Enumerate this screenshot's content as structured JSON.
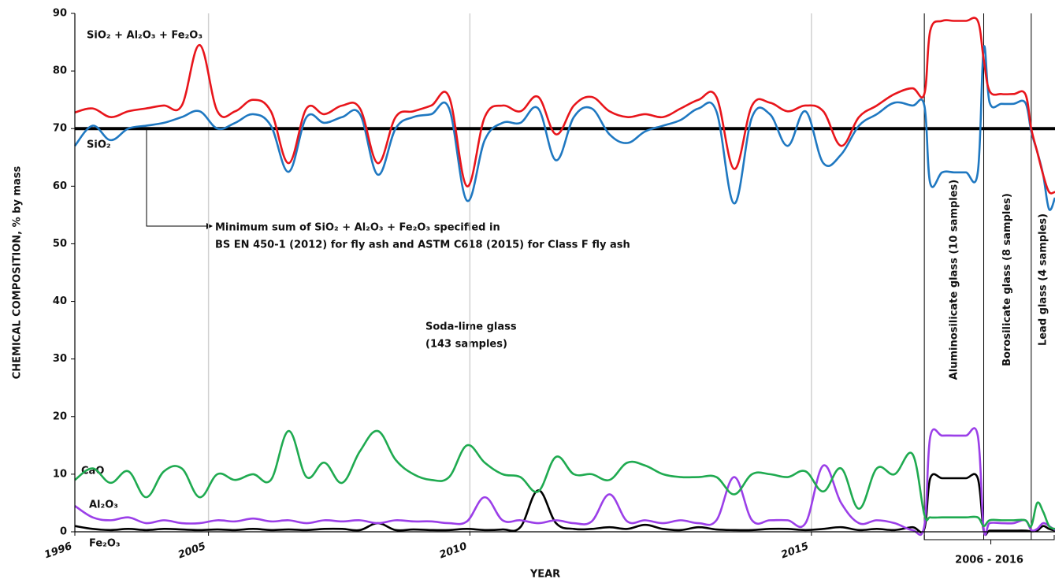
{
  "chart_data": {
    "type": "line",
    "xlabel": "YEAR",
    "ylabel": "CHEMICAL COMPOSITION, % by mass",
    "xlim": [
      0,
      165
    ],
    "ylim": [
      0,
      90
    ],
    "yticks": [
      0,
      10,
      20,
      30,
      40,
      50,
      60,
      70,
      80,
      90
    ],
    "xticks": [
      {
        "value": 0,
        "label": "1996"
      },
      {
        "value": 22.5,
        "label": "2005"
      },
      {
        "value": 66.5,
        "label": "2010"
      },
      {
        "value": 124,
        "label": "2015"
      }
    ],
    "grid": true,
    "x": [
      0,
      3,
      6,
      9,
      12,
      15,
      18,
      21,
      24,
      27,
      30,
      33,
      36,
      39,
      42,
      45,
      48,
      51,
      54,
      57,
      60,
      63,
      66,
      69,
      72,
      75,
      78,
      81,
      84,
      87,
      90,
      93,
      96,
      99,
      102,
      105,
      108,
      111,
      114,
      117,
      120,
      123,
      126,
      129,
      132,
      135,
      138,
      141,
      143,
      144,
      146,
      148,
      150,
      152,
      153,
      154,
      156,
      158,
      160,
      161,
      162,
      163,
      164,
      165
    ],
    "series": [
      {
        "name": "SiO₂ + Al₂O₃ + Fe₂O₃",
        "color": "#e8151b",
        "values": [
          72.8,
          73.5,
          72,
          73,
          73.5,
          74,
          74,
          84.5,
          73,
          73,
          75,
          73,
          64,
          73.5,
          72.5,
          74,
          73.5,
          64,
          72,
          73,
          74,
          75.5,
          60,
          72,
          74,
          73,
          75.5,
          69,
          74,
          75.5,
          73,
          72,
          72.5,
          72,
          73.5,
          75,
          75.5,
          63,
          74,
          74.5,
          73,
          74,
          73,
          67,
          72,
          74,
          76,
          77,
          76,
          87,
          88.7,
          88.7,
          88.7,
          88.7,
          82,
          76.5,
          76,
          76,
          76,
          70,
          66,
          62,
          59,
          59
        ]
      },
      {
        "name": "SiO₂",
        "color": "#1f78c1",
        "values": [
          67,
          70.5,
          68,
          70,
          70.5,
          71,
          72,
          73,
          70,
          71,
          72.5,
          70.5,
          62.5,
          72,
          71,
          72,
          72.5,
          62,
          70,
          72,
          72.5,
          73.5,
          57.5,
          68,
          71,
          71,
          73.5,
          64.5,
          72,
          73.5,
          69,
          67.5,
          69.5,
          70.5,
          71.5,
          73.5,
          73,
          57,
          72,
          72.5,
          67,
          73,
          64,
          65.5,
          70.5,
          72.5,
          74.5,
          74,
          74,
          60.5,
          62.4,
          62.4,
          62.4,
          62.4,
          84,
          74.5,
          74.3,
          74.3,
          74.5,
          69.5,
          66,
          62,
          56,
          58
        ]
      },
      {
        "name": "CaO",
        "color": "#1faa50",
        "values": [
          9,
          11,
          8.5,
          10.5,
          6,
          10.5,
          11,
          6,
          10,
          9,
          10,
          9,
          17.5,
          9.5,
          12,
          8.5,
          14,
          17.5,
          12.5,
          10,
          9,
          9.5,
          15,
          12,
          10,
          9.5,
          7,
          13,
          10,
          10,
          9,
          12,
          11.5,
          10,
          9.5,
          9.5,
          9.5,
          6.5,
          10,
          10,
          9.5,
          10.5,
          7,
          11,
          4,
          11,
          10,
          13.5,
          3,
          2.5,
          2.5,
          2.5,
          2.5,
          2.5,
          1,
          2,
          2,
          2,
          2,
          1,
          5,
          3.5,
          1,
          0.5
        ]
      },
      {
        "name": "Al₂O₃",
        "color": "#9b3fe8",
        "values": [
          4.5,
          2.5,
          2,
          2.5,
          1.5,
          2,
          1.5,
          1.5,
          2,
          1.8,
          2.3,
          1.8,
          2,
          1.5,
          2,
          1.8,
          2,
          1.5,
          2,
          1.8,
          1.8,
          1.5,
          1.8,
          6,
          2,
          2,
          1.5,
          2,
          1.5,
          1.8,
          6.5,
          1.8,
          2,
          1.5,
          2,
          1.5,
          2,
          9.5,
          2,
          2,
          2,
          1.5,
          11.5,
          5,
          1.5,
          2,
          1.5,
          0.3,
          1,
          16.5,
          16.7,
          16.7,
          16.7,
          16.7,
          0.5,
          1.5,
          1.5,
          1.5,
          2,
          0.3,
          0.5,
          1.5,
          1,
          0.3
        ]
      },
      {
        "name": "Fe₂O₃",
        "color": "#000000",
        "values": [
          1,
          0.5,
          0.3,
          0.5,
          0.3,
          0.5,
          0.4,
          0.3,
          0.4,
          0.3,
          0.5,
          0.3,
          0.4,
          0.3,
          0.5,
          0.5,
          0.3,
          1.5,
          0.3,
          0.4,
          0.3,
          0.3,
          0.5,
          0.3,
          0.4,
          0.8,
          7.2,
          1.5,
          0.5,
          0.5,
          0.8,
          0.5,
          1.2,
          0.5,
          0.3,
          0.8,
          0.4,
          0.3,
          0.3,
          0.5,
          0.5,
          0.3,
          0.5,
          0.8,
          0.3,
          0.5,
          0.3,
          0.8,
          0.5,
          9.3,
          9.3,
          9.3,
          9.3,
          9.3,
          0.2,
          0.2,
          0.2,
          0.2,
          0.2,
          0.1,
          0.2,
          1,
          0.5,
          0.2
        ]
      }
    ],
    "reference_line": {
      "value": 70,
      "label": [
        "Minimum sum of SiO₂ + Al₂O₃ + Fe₂O₃ specified in",
        "BS EN 450-1 (2012) for fly ash and ASTM C618 (2015) for Class F fly ash"
      ]
    },
    "annotation": [
      "Soda-lime glass",
      "(143 samples)"
    ],
    "groups": [
      {
        "label": "Aluminosilicate glass (10 samples)",
        "start": 143,
        "end": 153
      },
      {
        "label": "Borosilicate glass (8 samples)",
        "start": 153,
        "end": 161
      },
      {
        "label": "Lead glass (4 samples)",
        "start": 161,
        "end": 165
      }
    ],
    "bracket": {
      "label": "2006 - 2016",
      "start": 143,
      "end": 165
    }
  }
}
